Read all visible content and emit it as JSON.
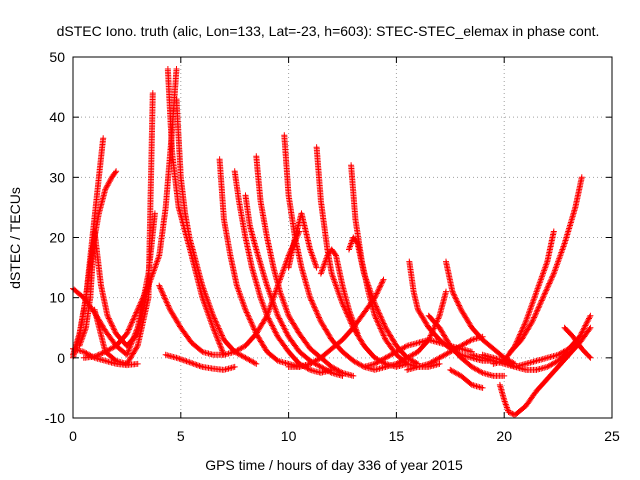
{
  "chart_data": {
    "type": "scatter",
    "title": "dSTEC Iono. truth (alic, Lon=133, Lat=-23, h=603): STEC-STEC_elemax in phase cont.",
    "xlabel": "GPS time / hours of day 336 of year 2015",
    "ylabel": "dSTEC  / TECUs",
    "xlim": [
      0,
      25
    ],
    "ylim": [
      -10,
      50
    ],
    "xticks": [
      0,
      5,
      10,
      15,
      20,
      25
    ],
    "yticks": [
      -10,
      0,
      10,
      20,
      30,
      40,
      50
    ],
    "xtick_labels": [
      "0",
      "5",
      "10",
      "15",
      "20",
      "25"
    ],
    "ytick_labels": [
      "-10",
      "0",
      "10",
      "20",
      "30",
      "40",
      "50"
    ],
    "grid": true,
    "legend": "none",
    "marker": "+",
    "color": "#ff0000",
    "series": [
      {
        "x": [
          0.0,
          0.5,
          1.0,
          1.5,
          2.0,
          2.5,
          3.0,
          3.5,
          3.8
        ],
        "y": [
          11.5,
          10.0,
          7.5,
          4.5,
          2.0,
          0.5,
          5.0,
          14.0,
          24.0
        ]
      },
      {
        "x": [
          0.0,
          0.5,
          1.0,
          1.5,
          2.0,
          2.5,
          3.0
        ],
        "y": [
          1.5,
          1.0,
          0.0,
          -0.5,
          -1.0,
          -1.2,
          -1.0
        ]
      },
      {
        "x": [
          0.0,
          0.3,
          0.6,
          0.9,
          1.2,
          1.5,
          1.8,
          2.0
        ],
        "y": [
          0.5,
          4.0,
          10.0,
          18.0,
          24.0,
          28.0,
          30.0,
          31.0
        ]
      },
      {
        "x": [
          0.0,
          0.3,
          0.6,
          0.9,
          1.2,
          1.4
        ],
        "y": [
          0.0,
          3.5,
          10.0,
          20.0,
          30.0,
          36.5
        ]
      },
      {
        "x": [
          0.3,
          0.6,
          0.8,
          1.0,
          1.3,
          1.6,
          2.0,
          2.5,
          3.0,
          3.5
        ],
        "y": [
          2.0,
          5.0,
          10.0,
          21.0,
          12.0,
          7.0,
          4.0,
          2.0,
          4.0,
          12.0
        ]
      },
      {
        "x": [
          0.5,
          1.0,
          1.5,
          2.0,
          2.5,
          3.0,
          3.5,
          4.0,
          4.3,
          4.6,
          4.8
        ],
        "y": [
          0.0,
          0.2,
          1.0,
          2.0,
          4.0,
          8.0,
          12.0,
          17.0,
          25.0,
          38.0,
          48.0
        ]
      },
      {
        "x": [
          1.0,
          1.5,
          2.0,
          2.5,
          3.0,
          3.5,
          3.7
        ],
        "y": [
          8.0,
          1.0,
          -0.5,
          -1.0,
          2.0,
          10.0,
          44.0
        ]
      },
      {
        "x": [
          4.4,
          4.6,
          4.9,
          5.2,
          5.5,
          6.0,
          6.5,
          7.0
        ],
        "y": [
          48.0,
          34.0,
          25.0,
          21.0,
          17.0,
          10.0,
          5.0,
          0.5
        ]
      },
      {
        "x": [
          4.8,
          5.0,
          5.2,
          5.4,
          5.7,
          6.0,
          6.5,
          7.0,
          7.5,
          8.0,
          8.5
        ],
        "y": [
          43.0,
          30.0,
          24.0,
          20.0,
          16.0,
          12.0,
          7.0,
          3.0,
          1.0,
          0.0,
          -1.0
        ]
      },
      {
        "x": [
          4.3,
          4.8,
          5.2,
          5.6,
          6.0,
          6.5,
          7.0,
          7.5
        ],
        "y": [
          0.5,
          0.0,
          -0.5,
          -1.0,
          -1.5,
          -1.8,
          -2.0,
          -1.5
        ]
      },
      {
        "x": [
          4.0,
          4.5,
          5.0,
          5.5,
          6.0,
          6.5,
          7.0,
          7.5,
          8.0,
          8.5,
          9.0,
          9.5,
          10.0,
          10.5
        ],
        "y": [
          12.0,
          8.0,
          5.0,
          2.5,
          1.0,
          0.5,
          0.5,
          1.0,
          2.0,
          4.0,
          7.0,
          12.0,
          17.0,
          21.0
        ]
      },
      {
        "x": [
          6.8,
          7.0,
          7.3,
          7.6,
          8.0,
          8.5,
          9.0,
          9.5,
          10.0,
          10.5,
          11.0
        ],
        "y": [
          33.0,
          23.0,
          17.0,
          12.0,
          8.0,
          4.0,
          1.0,
          -0.5,
          -1.0,
          -1.5,
          -1.0
        ]
      },
      {
        "x": [
          7.5,
          7.7,
          8.0,
          8.3,
          8.7,
          9.0,
          9.5,
          10.0,
          10.5,
          11.0,
          11.5,
          12.0
        ],
        "y": [
          31.0,
          26.0,
          20.0,
          15.0,
          10.0,
          7.0,
          3.5,
          1.0,
          -1.0,
          -2.0,
          -2.5,
          -2.0
        ]
      },
      {
        "x": [
          8.0,
          8.2,
          8.5,
          9.0,
          9.5,
          10.0,
          10.5,
          11.0,
          11.5,
          12.0,
          12.5
        ],
        "y": [
          27.0,
          22.0,
          18.0,
          12.0,
          7.0,
          3.5,
          1.0,
          -0.5,
          -1.5,
          -2.5,
          -3.0
        ]
      },
      {
        "x": [
          8.5,
          8.7,
          9.0,
          9.3,
          9.6,
          10.0,
          10.5,
          11.0,
          11.5,
          12.0,
          12.5,
          13.0
        ],
        "y": [
          33.5,
          26.0,
          20.0,
          15.0,
          11.0,
          7.0,
          4.0,
          1.5,
          0.0,
          -1.5,
          -2.5,
          -3.0
        ]
      },
      {
        "x": [
          9.8,
          10.0,
          10.3,
          10.6,
          11.0,
          11.5,
          12.0,
          12.5,
          13.0,
          13.5,
          14.0,
          14.5
        ],
        "y": [
          37.0,
          27.0,
          20.0,
          15.0,
          10.0,
          6.0,
          3.0,
          1.0,
          -0.5,
          -1.5,
          -2.0,
          -1.5
        ]
      },
      {
        "x": [
          10.0,
          10.3,
          10.6,
          11.0,
          11.3
        ],
        "y": [
          15.0,
          20.0,
          24.0,
          18.0,
          15.0
        ]
      },
      {
        "x": [
          11.3,
          11.5,
          11.8,
          12.0,
          12.5,
          13.0,
          13.5,
          14.0,
          14.5,
          15.0,
          15.5
        ],
        "y": [
          35.0,
          26.0,
          18.0,
          14.0,
          9.0,
          5.0,
          2.0,
          0.0,
          -1.0,
          -1.5,
          -1.0
        ]
      },
      {
        "x": [
          11.5,
          11.8,
          12.0,
          12.2,
          12.5,
          12.8,
          13.0,
          13.2
        ],
        "y": [
          14.0,
          17.0,
          18.0,
          17.0,
          12.0,
          8.0,
          6.0,
          4.0
        ]
      },
      {
        "x": [
          12.9,
          13.1,
          13.4,
          13.7,
          14.0,
          14.5,
          15.0,
          15.5,
          16.0,
          16.5,
          17.0
        ],
        "y": [
          32.0,
          23.0,
          16.0,
          11.0,
          7.0,
          3.0,
          0.5,
          -1.0,
          -1.5,
          -1.5,
          -1.0
        ]
      },
      {
        "x": [
          10.0,
          10.5,
          11.0,
          11.5,
          12.0,
          12.5,
          13.0,
          13.5,
          14.0,
          14.4
        ],
        "y": [
          -1.5,
          -1.5,
          -1.0,
          0.0,
          1.5,
          3.0,
          5.0,
          7.5,
          10.0,
          13.0
        ]
      },
      {
        "x": [
          12.8,
          13.0,
          13.2,
          13.5,
          14.0,
          14.5,
          15.0,
          15.5,
          16.0
        ],
        "y": [
          18.0,
          20.0,
          19.0,
          14.0,
          9.0,
          5.0,
          2.0,
          0.0,
          -1.0
        ]
      },
      {
        "x": [
          13.5,
          14.0,
          14.5,
          15.0,
          15.5,
          16.0,
          16.5,
          17.0,
          17.5,
          18.0,
          18.5
        ],
        "y": [
          -1.5,
          -1.0,
          0.0,
          1.0,
          2.0,
          2.5,
          3.0,
          2.5,
          2.0,
          1.5,
          1.0
        ]
      },
      {
        "x": [
          14.5,
          15.0,
          15.5,
          16.0,
          16.5,
          17.0,
          17.3
        ],
        "y": [
          -1.5,
          -1.0,
          0.0,
          1.0,
          3.0,
          7.0,
          11.0
        ]
      },
      {
        "x": [
          15.6,
          15.8,
          16.0,
          16.5,
          17.0,
          17.5,
          18.0,
          18.5,
          19.0,
          19.5
        ],
        "y": [
          16.0,
          11.0,
          8.0,
          5.0,
          3.0,
          1.5,
          0.5,
          0.0,
          -0.5,
          -0.5
        ]
      },
      {
        "x": [
          17.3,
          17.6,
          18.0,
          18.5,
          19.0,
          19.5,
          20.0,
          20.5
        ],
        "y": [
          16.0,
          11.0,
          8.0,
          5.0,
          3.0,
          1.5,
          0.0,
          -1.0
        ]
      },
      {
        "x": [
          15.5,
          16.0,
          16.5,
          17.0,
          17.5,
          18.0,
          18.5,
          19.0
        ],
        "y": [
          -2.0,
          -1.5,
          -1.0,
          0.0,
          1.0,
          2.0,
          3.0,
          3.5
        ]
      },
      {
        "x": [
          16.5,
          17.0,
          17.5,
          18.0,
          18.5,
          19.0,
          19.5,
          20.0
        ],
        "y": [
          7.0,
          5.0,
          2.0,
          0.0,
          -1.5,
          -2.5,
          -3.0,
          -3.0
        ]
      },
      {
        "x": [
          17.5,
          18.0,
          18.5,
          19.0
        ],
        "y": [
          -2.0,
          -3.0,
          -4.5,
          -5.0
        ]
      },
      {
        "x": [
          19.8,
          20.0,
          20.2,
          20.5,
          21.0,
          21.5,
          22.0,
          22.5,
          23.0,
          23.5,
          24.0
        ],
        "y": [
          -4.5,
          -7.0,
          -9.0,
          -9.5,
          -8.0,
          -5.5,
          -3.5,
          -1.5,
          0.5,
          2.5,
          5.0
        ]
      },
      {
        "x": [
          18.5,
          19.0,
          19.5,
          20.0,
          20.5,
          21.0,
          21.5,
          22.0,
          22.5,
          23.0,
          23.5,
          24.0
        ],
        "y": [
          0.5,
          0.0,
          -0.5,
          -1.0,
          -1.5,
          -1.0,
          -0.5,
          0.0,
          0.5,
          1.5,
          3.5,
          7.0
        ]
      },
      {
        "x": [
          19.5,
          20.0,
          20.5,
          21.0,
          21.5,
          22.0,
          22.3
        ],
        "y": [
          -1.0,
          -0.5,
          2.0,
          6.0,
          11.0,
          16.0,
          21.0
        ]
      },
      {
        "x": [
          20.3,
          20.8,
          21.3,
          21.8,
          22.3,
          22.8,
          23.3,
          23.6
        ],
        "y": [
          1.0,
          3.0,
          6.0,
          10.0,
          14.0,
          19.0,
          25.0,
          30.0
        ]
      },
      {
        "x": [
          19.0,
          19.5,
          20.0,
          20.5,
          21.0,
          21.5,
          22.0,
          22.5,
          23.0
        ],
        "y": [
          0.5,
          0.0,
          -0.5,
          -1.5,
          -2.0,
          -2.0,
          -1.5,
          -0.5,
          1.0
        ]
      },
      {
        "x": [
          22.8,
          23.2,
          23.6,
          24.0
        ],
        "y": [
          5.0,
          3.5,
          1.5,
          0.0
        ]
      }
    ]
  }
}
